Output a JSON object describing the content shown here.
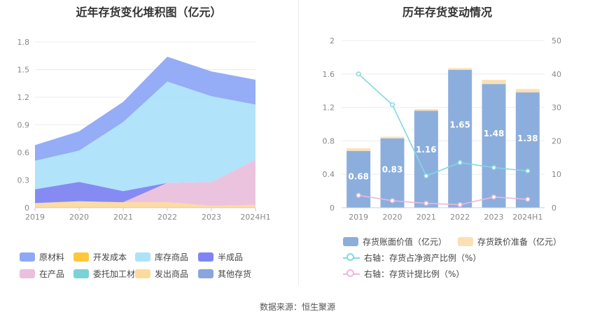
{
  "source": "数据来源：恒生聚源",
  "chart_data": [
    {
      "type": "area",
      "stacked": true,
      "title": "近年存货变化堆积图（亿元）",
      "categories": [
        "2019",
        "2020",
        "2021",
        "2022",
        "2023",
        "2024H1"
      ],
      "ylim": [
        0,
        1.8
      ],
      "yticks": [
        "0",
        "0.3",
        "0.6",
        "0.9",
        "1.2",
        "1.5",
        "1.8"
      ],
      "grid": true,
      "legend_position": "bottom",
      "series": [
        {
          "name": "原材料",
          "color": "#8FA8F6",
          "values": [
            0.17,
            0.21,
            0.22,
            0.27,
            0.27,
            0.27
          ]
        },
        {
          "name": "开发成本",
          "color": "#FFC73A",
          "values": [
            0,
            0,
            0,
            0,
            0,
            0
          ]
        },
        {
          "name": "库存商品",
          "color": "#ADE2FA",
          "values": [
            0.31,
            0.34,
            0.75,
            1.1,
            0.93,
            0.6
          ]
        },
        {
          "name": "半成品",
          "color": "#7E85F2",
          "values": [
            0.15,
            0.21,
            0.12,
            0.0,
            0.0,
            0.0
          ]
        },
        {
          "name": "在产品",
          "color": "#EBC0DD",
          "values": [
            0.0,
            0.0,
            0.0,
            0.21,
            0.26,
            0.49
          ]
        },
        {
          "name": "委托加工材料",
          "color": "#7AD2D6",
          "values": [
            0,
            0,
            0,
            0,
            0,
            0
          ]
        },
        {
          "name": "发出商品",
          "color": "#FCDA9E",
          "values": [
            0.05,
            0.07,
            0.06,
            0.06,
            0.02,
            0.03
          ]
        },
        {
          "name": "其他存货",
          "color": "#8AA5DA",
          "values": [
            0,
            0,
            0,
            0,
            0,
            0
          ]
        }
      ]
    },
    {
      "type": "bar",
      "stacked": true,
      "title": "历年存货变动情况",
      "categories": [
        "2019",
        "2020",
        "2021",
        "2022",
        "2023",
        "2024H1"
      ],
      "ylim": [
        0,
        2
      ],
      "yticks": [
        "0",
        "0.4",
        "0.8",
        "1.2",
        "1.6",
        "2"
      ],
      "y2lim": [
        0,
        50
      ],
      "y2ticks": [
        "0",
        "10",
        "20",
        "30",
        "40",
        "50"
      ],
      "grid": true,
      "legend_position": "bottom",
      "series": [
        {
          "name": "存货账面价值（亿元）",
          "color": "#8CAEDD",
          "values": [
            0.68,
            0.83,
            1.16,
            1.65,
            1.48,
            1.38
          ],
          "labels": [
            "0.68",
            "0.83",
            "1.16",
            "1.65",
            "1.48",
            "1.38"
          ]
        },
        {
          "name": "存货跌价准备（亿元）",
          "color": "#FCE0B4",
          "values": [
            0.03,
            0.02,
            0.02,
            0.02,
            0.05,
            0.04
          ]
        }
      ],
      "lines": [
        {
          "name": "右轴：存货占净资产比例（%）",
          "color": "#82D8E0",
          "axis": "right",
          "values": [
            40,
            30.8,
            9.5,
            13.5,
            12,
            11
          ]
        },
        {
          "name": "右轴：存货计提比例（%）",
          "color": "#EDB7DA",
          "axis": "right",
          "values": [
            3.7,
            2.1,
            1.3,
            0.9,
            3.2,
            2.5
          ]
        }
      ]
    }
  ]
}
